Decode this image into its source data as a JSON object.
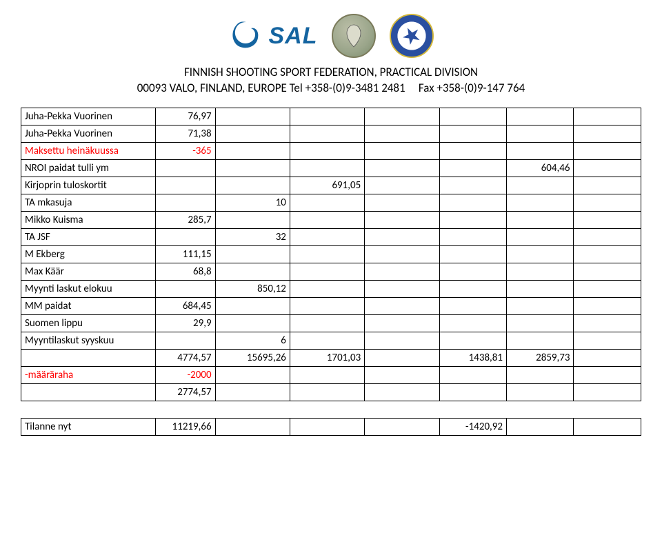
{
  "header": {
    "sal_text": "SAL",
    "line1": "FINNISH SHOOTING SPORT FEDERATION, PRACTICAL DIVISION",
    "line2": "00093 VALO, FINLAND, EUROPE Tel +358-(0)9-3481 2481     Fax +358-(0)9-147 764"
  },
  "colors": {
    "text": "#000000",
    "red": "#ff0000",
    "sal_blue": "#1464a0",
    "border": "#000000",
    "background": "#ffffff"
  },
  "table": {
    "columns": 8,
    "rows": [
      {
        "label": "Juha-Pekka Vuorinen",
        "b": "76,97"
      },
      {
        "label": "Juha-Pekka Vuorinen",
        "b": "71,38"
      },
      {
        "label": "Maksettu heinäkuussa",
        "b": "-365",
        "red": true
      },
      {
        "label": "NROI paidat tulli ym",
        "g": "604,46"
      },
      {
        "label": "Kirjoprin tuloskortit",
        "d": "691,05"
      },
      {
        "label": "TA mkasuja",
        "c": "10"
      },
      {
        "label": "Mikko Kuisma",
        "b": "285,7"
      },
      {
        "label": "TA JSF",
        "c": "32"
      },
      {
        "label": "M Ekberg",
        "b": "111,15"
      },
      {
        "label": "Max Käär",
        "b": "68,8"
      },
      {
        "label": "Myynti laskut elokuu",
        "c": "850,12"
      },
      {
        "label": "MM paidat",
        "b": "684,45"
      },
      {
        "label": "Suomen lippu",
        "b": "29,9"
      },
      {
        "label": "Myyntilaskut syyskuu",
        "c": "6"
      },
      {
        "label": "",
        "b": "4774,57",
        "c": "15695,26",
        "d": "1701,03",
        "f": "1438,81",
        "g": "2859,73"
      },
      {
        "label": "-määräraha",
        "b": "-2000",
        "red": true
      },
      {
        "label": "",
        "b": "2774,57"
      }
    ],
    "tilanne": {
      "label": "Tilanne nyt",
      "b": "11219,66",
      "f": "-1420,92"
    }
  }
}
